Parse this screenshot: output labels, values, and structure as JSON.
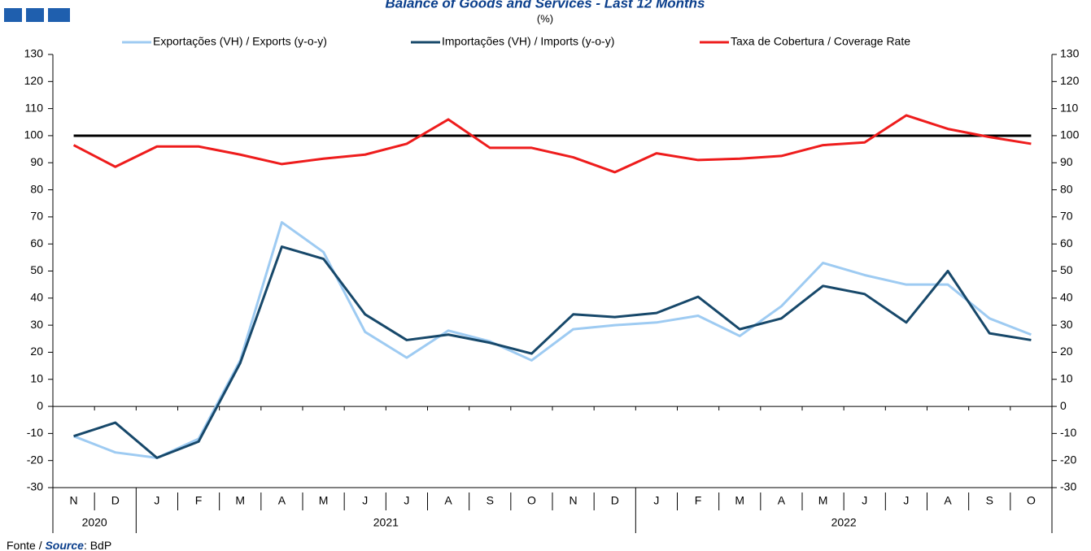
{
  "chart_data": {
    "type": "line",
    "title": "Balance of Goods and Services - Last 12 Months",
    "subtitle": "(%)",
    "category_groups": [
      {
        "label": "2020",
        "months": [
          "N",
          "D"
        ]
      },
      {
        "label": "2021",
        "months": [
          "J",
          "F",
          "M",
          "A",
          "M",
          "J",
          "J",
          "A",
          "S",
          "O",
          "N",
          "D"
        ]
      },
      {
        "label": "2022",
        "months": [
          "J",
          "F",
          "M",
          "A",
          "M",
          "J",
          "J",
          "A",
          "S",
          "O"
        ]
      }
    ],
    "series": [
      {
        "name": "Exportações (VH) / Exports (y-o-y)",
        "color": "#9ecbf2",
        "values": [
          -11,
          -17,
          -19,
          -12,
          17,
          68,
          57,
          27.5,
          18,
          28,
          24,
          17,
          28.5,
          30,
          31,
          33.5,
          26,
          37,
          53,
          48.5,
          45,
          45,
          32.5,
          26.5
        ]
      },
      {
        "name": "Importações (VH) / Imports (y-o-y)",
        "color": "#17486a",
        "values": [
          -11,
          -6,
          -19,
          -13,
          16,
          59,
          54.5,
          34,
          24.5,
          26.5,
          23.5,
          19.5,
          34,
          33,
          34.5,
          40.5,
          28.5,
          32.5,
          44.5,
          41.5,
          31,
          50,
          27,
          24.5
        ]
      },
      {
        "name": "Taxa de Cobertura / Coverage Rate",
        "color": "#ee1c1c",
        "values": [
          96.5,
          88.5,
          96,
          96,
          93,
          89.5,
          91.5,
          93,
          97,
          106,
          95.5,
          95.5,
          92,
          86.5,
          93.5,
          91,
          91.5,
          92.5,
          96.5,
          97.5,
          107.5,
          102.5,
          99.5,
          97
        ]
      }
    ],
    "reference_line": 100,
    "ylim": [
      -30,
      130
    ],
    "yticks": [
      -30,
      -20,
      -10,
      0,
      10,
      20,
      30,
      40,
      50,
      60,
      70,
      80,
      90,
      100,
      110,
      120,
      130
    ],
    "source": {
      "prefix": "Fonte / ",
      "label": "Source",
      "suffix": ": BdP"
    }
  }
}
